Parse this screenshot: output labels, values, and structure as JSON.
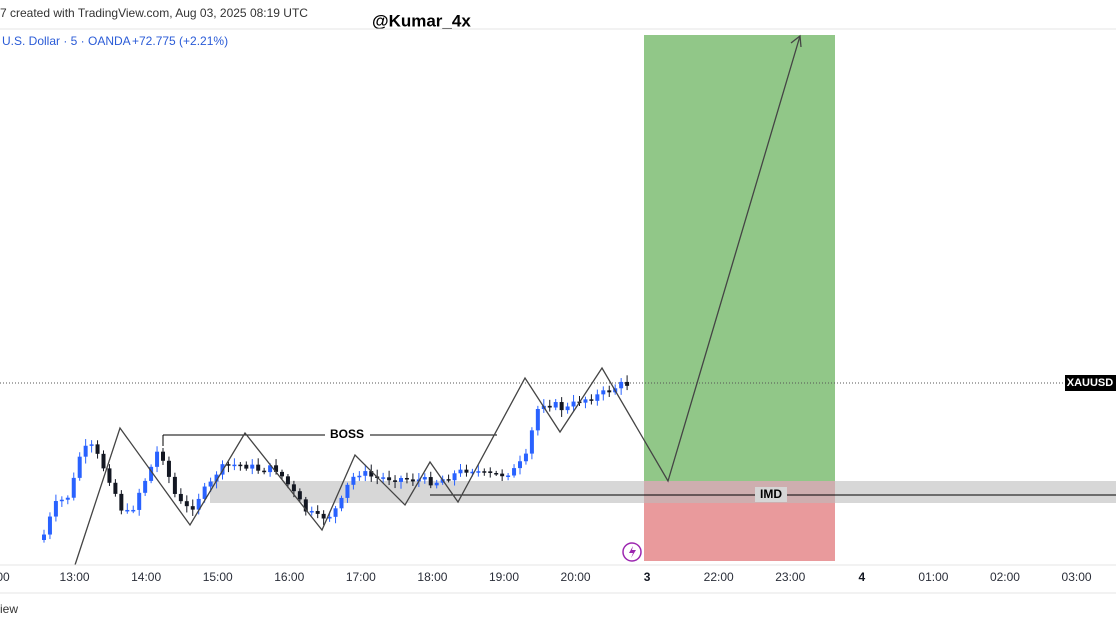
{
  "header": {
    "created": "7 created with TradingView.com, Aug 03, 2025 08:19 UTC",
    "watermark": "@Kumar_4x"
  },
  "symbol": {
    "name": "U.S. Dollar · 5 · OANDA",
    "change": "+72.775 (+2.21%)"
  },
  "labels": {
    "boss": "BOSS",
    "imd": "IMD",
    "ticker": "XAUUSD"
  },
  "time_axis": [
    "00",
    "13:00",
    "14:00",
    "15:00",
    "16:00",
    "17:00",
    "18:00",
    "19:00",
    "20:00",
    "3",
    "22:00",
    "23:00",
    "4",
    "01:00",
    "02:00",
    "03:00"
  ],
  "footer": "iew"
}
